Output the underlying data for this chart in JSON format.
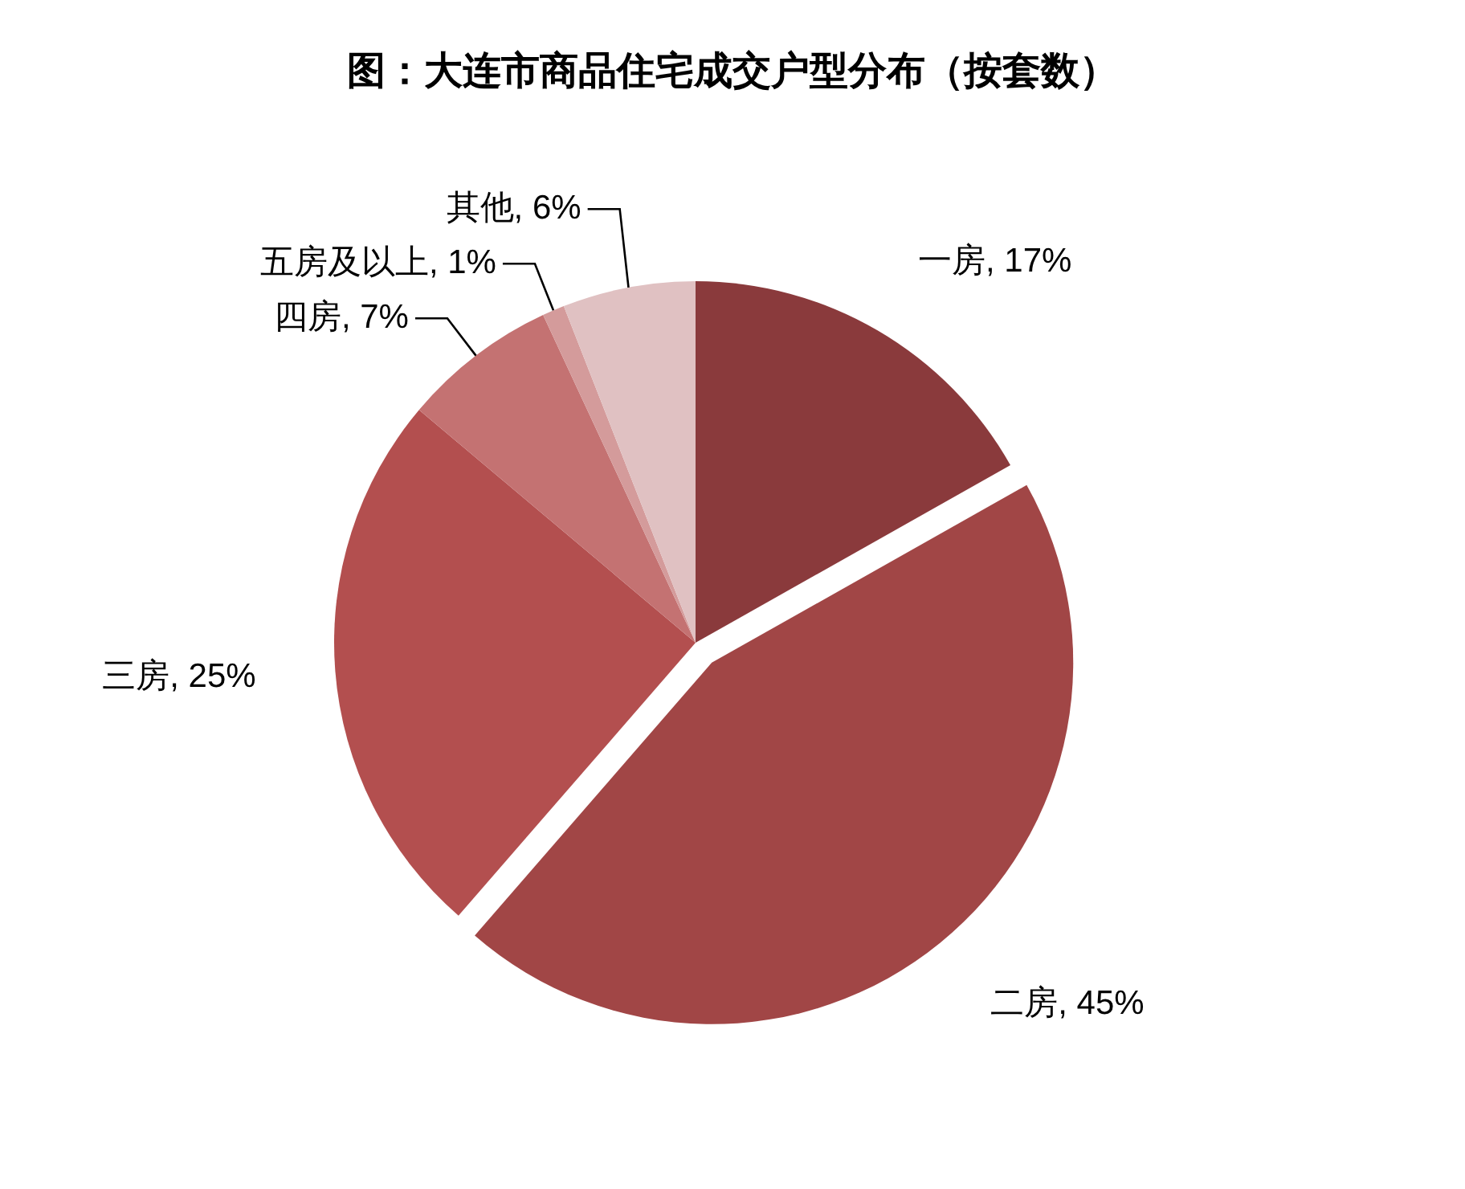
{
  "chart_data": {
    "type": "pie",
    "title": "图：大连市商品住宅成交户型分布（按套数）",
    "categories": [
      "一房",
      "二房",
      "三房",
      "四房",
      "五房及以上",
      "其他"
    ],
    "values": [
      17,
      45,
      25,
      7,
      1,
      6
    ],
    "colors": [
      "#8a3a3c",
      "#a14646",
      "#b34f4f",
      "#c47272",
      "#d49b9b",
      "#e0c1c2"
    ],
    "value_labels": [
      ", 17%",
      ", 45%",
      ", 25%",
      ", 7%",
      ", 1%",
      ", 6%"
    ]
  }
}
